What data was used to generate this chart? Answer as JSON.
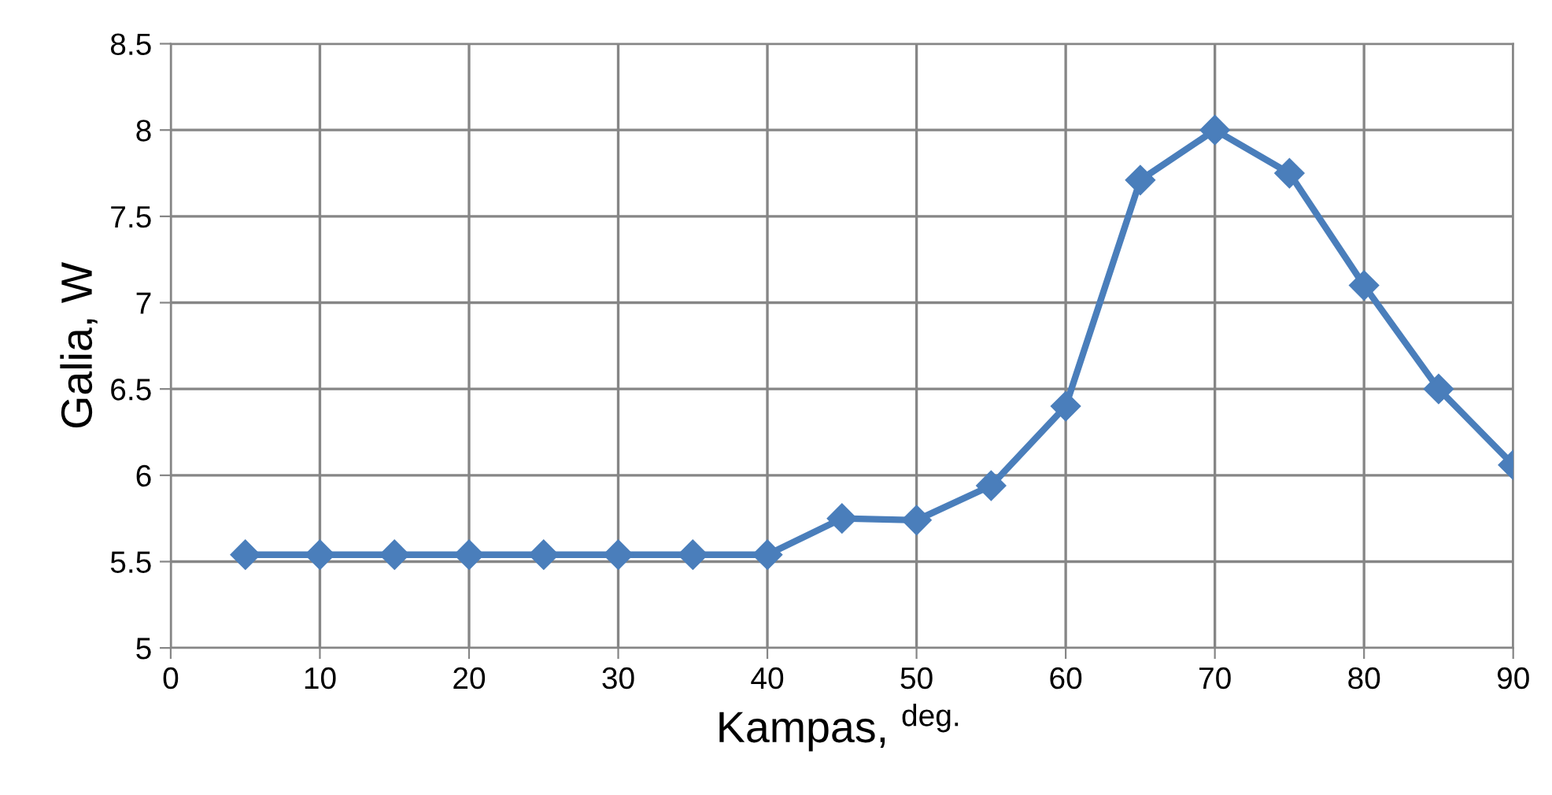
{
  "chart_data": {
    "type": "line",
    "xlabel": "Kampas, $^{deg.}$",
    "ylabel": "Galia, W",
    "x": [
      5,
      10,
      15,
      20,
      25,
      30,
      35,
      40,
      45,
      50,
      55,
      60,
      65,
      70,
      75,
      80,
      85,
      90
    ],
    "series": [
      {
        "color": "#4a7ebb",
        "values": [
          5.54,
          5.54,
          5.54,
          5.54,
          5.54,
          5.54,
          5.54,
          5.54,
          5.75,
          5.74,
          5.94,
          6.4,
          7.71,
          8.0,
          7.75,
          7.1,
          6.5,
          6.06
        ]
      }
    ],
    "xlim": [
      0,
      90
    ],
    "xticks": [
      0,
      10,
      20,
      30,
      40,
      50,
      60,
      70,
      80,
      90
    ],
    "ylim": [
      5,
      8.5
    ],
    "yticks": [
      5,
      5.5,
      6,
      6.5,
      7,
      7.5,
      8,
      8.5
    ],
    "grid": true,
    "marker": "diamond",
    "line_style": "solid"
  }
}
